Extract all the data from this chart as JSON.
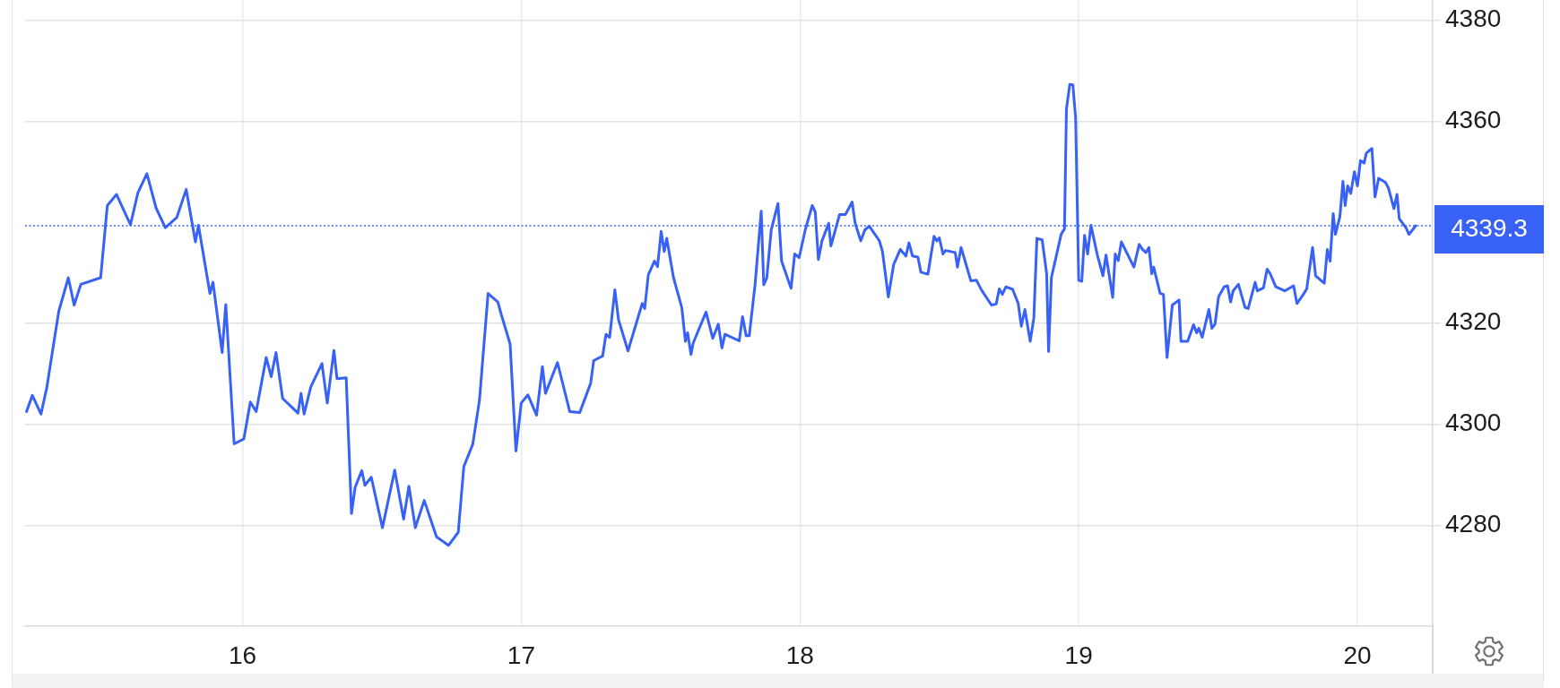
{
  "chart_data": {
    "type": "line",
    "x": [
      15.225,
      15.246,
      15.277,
      15.298,
      15.32,
      15.341,
      15.375,
      15.396,
      15.42,
      15.491,
      15.515,
      15.548,
      15.598,
      15.625,
      15.657,
      15.69,
      15.723,
      15.764,
      15.798,
      15.831,
      15.842,
      15.883,
      15.894,
      15.927,
      15.94,
      15.97,
      16.005,
      16.028,
      16.049,
      16.085,
      16.103,
      16.12,
      16.144,
      16.199,
      16.21,
      16.221,
      16.245,
      16.285,
      16.304,
      16.328,
      16.339,
      16.372,
      16.391,
      16.404,
      16.428,
      16.439,
      16.462,
      16.502,
      16.546,
      16.578,
      16.597,
      16.62,
      16.652,
      16.696,
      16.739,
      16.774,
      16.794,
      16.826,
      16.85,
      16.881,
      16.916,
      16.929,
      16.96,
      16.981,
      17.0,
      17.024,
      17.055,
      17.076,
      17.087,
      17.13,
      17.174,
      17.21,
      17.249,
      17.26,
      17.292,
      17.304,
      17.317,
      17.336,
      17.349,
      17.383,
      17.434,
      17.443,
      17.456,
      17.478,
      17.489,
      17.502,
      17.513,
      17.522,
      17.546,
      17.576,
      17.589,
      17.597,
      17.609,
      17.617,
      17.663,
      17.687,
      17.707,
      17.72,
      17.731,
      17.782,
      17.794,
      17.807,
      17.818,
      17.839,
      17.861,
      17.87,
      17.881,
      17.897,
      17.921,
      17.934,
      17.968,
      17.981,
      17.997,
      18.019,
      18.044,
      18.055,
      18.066,
      18.079,
      18.103,
      18.111,
      18.142,
      18.163,
      18.187,
      18.198,
      18.218,
      18.233,
      18.249,
      18.285,
      18.296,
      18.317,
      18.336,
      18.36,
      18.38,
      18.391,
      18.404,
      18.423,
      18.434,
      18.459,
      18.481,
      18.491,
      18.5,
      18.513,
      18.522,
      18.557,
      18.565,
      18.578,
      18.613,
      18.633,
      18.652,
      18.687,
      18.704,
      18.715,
      18.726,
      18.739,
      18.763,
      18.783,
      18.794,
      18.807,
      18.826,
      18.839,
      18.85,
      18.869,
      18.885,
      18.892,
      18.902,
      18.937,
      18.949,
      18.956,
      18.968,
      18.979,
      18.989,
      19.0,
      19.011,
      19.021,
      19.032,
      19.044,
      19.066,
      19.087,
      19.098,
      19.122,
      19.131,
      19.142,
      19.153,
      19.198,
      19.217,
      19.229,
      19.241,
      19.252,
      19.262,
      19.269,
      19.292,
      19.304,
      19.317,
      19.336,
      19.36,
      19.367,
      19.391,
      19.412,
      19.423,
      19.431,
      19.443,
      19.467,
      19.478,
      19.489,
      19.502,
      19.522,
      19.534,
      19.545,
      19.554,
      19.573,
      19.597,
      19.608,
      19.633,
      19.641,
      19.663,
      19.676,
      19.687,
      19.707,
      19.739,
      19.771,
      19.783,
      19.806,
      19.818,
      19.839,
      19.85,
      19.881,
      19.892,
      19.902,
      19.913,
      19.921,
      19.937,
      19.948,
      19.956,
      19.965,
      19.976,
      19.989,
      20.0,
      20.011,
      20.024,
      20.032,
      20.052,
      20.063,
      20.076,
      20.1,
      20.111,
      20.131,
      20.142,
      20.15,
      20.174,
      20.185,
      20.198,
      20.209
    ],
    "series": [
      {
        "color": "#3861f6",
        "values": [
          4302.5,
          4305.7,
          4302.0,
          4307.3,
          4315.1,
          4322.4,
          4329.0,
          4323.6,
          4327.7,
          4329.0,
          4343.3,
          4345.5,
          4339.5,
          4345.9,
          4349.6,
          4342.8,
          4338.9,
          4340.9,
          4346.5,
          4336.1,
          4339.4,
          4325.9,
          4328.1,
          4314.2,
          4323.7,
          4296.1,
          4297.1,
          4304.4,
          4302.5,
          4313.2,
          4309.4,
          4314.2,
          4305.1,
          4302.2,
          4306.1,
          4302.0,
          4307.4,
          4312.0,
          4304.2,
          4314.6,
          4309.0,
          4309.2,
          4282.3,
          4287.5,
          4290.8,
          4287.9,
          4289.5,
          4279.5,
          4290.9,
          4281.2,
          4287.7,
          4279.5,
          4284.9,
          4277.7,
          4276.0,
          4278.6,
          4291.6,
          4296.0,
          4304.7,
          4325.9,
          4324.2,
          4321.6,
          4315.9,
          4294.7,
          4304.2,
          4305.8,
          4301.8,
          4311.4,
          4306.1,
          4312.2,
          4302.5,
          4302.3,
          4308.1,
          4312.6,
          4313.5,
          4317.8,
          4317.2,
          4326.6,
          4320.7,
          4314.5,
          4323.9,
          4322.9,
          4329.6,
          4332.3,
          4331.2,
          4338.2,
          4334.2,
          4336.8,
          4329.1,
          4323.1,
          4316.4,
          4318.1,
          4313.8,
          4316.1,
          4322.2,
          4317.0,
          4319.8,
          4315.1,
          4317.8,
          4316.5,
          4321.3,
          4317.5,
          4317.5,
          4327.7,
          4342.2,
          4327.6,
          4329.0,
          4338.5,
          4343.7,
          4332.3,
          4326.9,
          4333.7,
          4333.0,
          4338.5,
          4343.3,
          4342.0,
          4332.6,
          4336.3,
          4339.8,
          4335.3,
          4341.5,
          4341.5,
          4344.0,
          4339.8,
          4336.3,
          4338.5,
          4339.2,
          4336.3,
          4334.2,
          4325.2,
          4331.6,
          4334.6,
          4333.3,
          4335.9,
          4333.3,
          4333.1,
          4330.1,
          4329.7,
          4337.2,
          4336.3,
          4336.9,
          4333.7,
          4334.4,
          4334.0,
          4331.1,
          4335.0,
          4328.4,
          4328.5,
          4326.5,
          4323.6,
          4323.8,
          4326.8,
          4325.7,
          4327.2,
          4326.7,
          4323.9,
          4319.4,
          4322.7,
          4316.4,
          4321.0,
          4336.8,
          4336.5,
          4329.8,
          4314.4,
          4329.0,
          4337.6,
          4338.7,
          4362.4,
          4367.3,
          4367.2,
          4360.6,
          4328.5,
          4328.3,
          4337.4,
          4333.7,
          4339.4,
          4333.7,
          4329.4,
          4333.5,
          4325.1,
          4333.7,
          4332.4,
          4336.1,
          4331.1,
          4335.6,
          4334.6,
          4334.0,
          4335.0,
          4329.8,
          4331.1,
          4325.9,
          4325.7,
          4313.2,
          4323.6,
          4324.6,
          4316.4,
          4316.4,
          4319.7,
          4318.1,
          4319.0,
          4317.2,
          4322.7,
          4319.0,
          4319.8,
          4325.3,
          4327.2,
          4327.4,
          4324.2,
          4326.4,
          4327.7,
          4323.1,
          4322.9,
          4328.1,
          4326.4,
          4327.0,
          4330.7,
          4329.8,
          4327.2,
          4326.4,
          4327.4,
          4323.9,
          4325.7,
          4326.8,
          4335.0,
          4329.4,
          4327.9,
          4334.6,
          4332.3,
          4341.7,
          4337.6,
          4341.1,
          4348.1,
          4343.3,
          4347.2,
          4345.7,
          4350.0,
          4347.2,
          4352.2,
          4351.7,
          4353.7,
          4354.6,
          4345.0,
          4348.7,
          4347.9,
          4346.8,
          4342.7,
          4345.5,
          4340.7,
          4338.9,
          4337.6,
          4338.5,
          4339.3
        ]
      }
    ],
    "xlim": [
      15.22,
      20.27
    ],
    "xticks": [
      16,
      17,
      18,
      19,
      20
    ],
    "ylim": [
      4260,
      4384
    ],
    "yticks": [
      4280,
      4300,
      4320,
      4360,
      4380
    ],
    "grid": true,
    "ref_lines": [
      {
        "axis": "y",
        "value": 4339.3,
        "label": "4339.3",
        "color": "#3861f6",
        "line_style": "dotted"
      }
    ]
  }
}
